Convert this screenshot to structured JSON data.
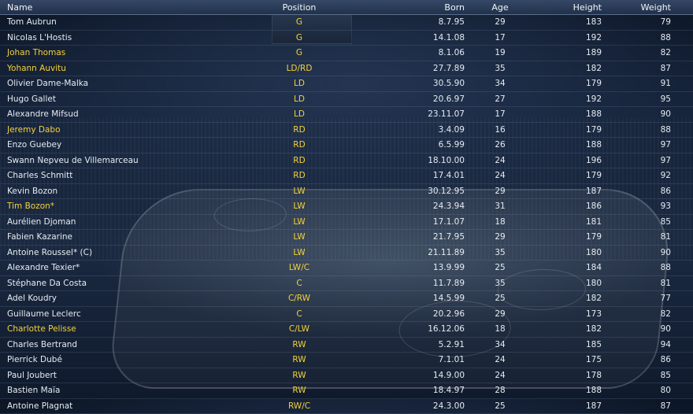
{
  "columns": {
    "name": "Name",
    "position": "Position",
    "born": "Born",
    "age": "Age",
    "height": "Height",
    "weight": "Weight"
  },
  "players": [
    {
      "name": "Tom Aubrun",
      "position": "G",
      "born": "8.7.95",
      "age": "29",
      "height": "183",
      "weight": "79",
      "highlight": false
    },
    {
      "name": "Nicolas L'Hostis",
      "position": "G",
      "born": "14.1.08",
      "age": "17",
      "height": "192",
      "weight": "88",
      "highlight": false
    },
    {
      "name": "Johan Thomas",
      "position": "G",
      "born": "8.1.06",
      "age": "19",
      "height": "189",
      "weight": "82",
      "highlight": true
    },
    {
      "name": "Yohann Auvitu",
      "position": "LD/RD",
      "born": "27.7.89",
      "age": "35",
      "height": "182",
      "weight": "87",
      "highlight": true
    },
    {
      "name": "Olivier Dame-Malka",
      "position": "LD",
      "born": "30.5.90",
      "age": "34",
      "height": "179",
      "weight": "91",
      "highlight": false
    },
    {
      "name": "Hugo Gallet",
      "position": "LD",
      "born": "20.6.97",
      "age": "27",
      "height": "192",
      "weight": "95",
      "highlight": false
    },
    {
      "name": "Alexandre Mifsud",
      "position": "LD",
      "born": "23.11.07",
      "age": "17",
      "height": "188",
      "weight": "90",
      "highlight": false
    },
    {
      "name": "Jeremy Dabo",
      "position": "RD",
      "born": "3.4.09",
      "age": "16",
      "height": "179",
      "weight": "88",
      "highlight": true
    },
    {
      "name": "Enzo Guebey",
      "position": "RD",
      "born": "6.5.99",
      "age": "26",
      "height": "188",
      "weight": "97",
      "highlight": false
    },
    {
      "name": "Swann Nepveu de Villemarceau",
      "position": "RD",
      "born": "18.10.00",
      "age": "24",
      "height": "196",
      "weight": "97",
      "highlight": false
    },
    {
      "name": "Charles Schmitt",
      "position": "RD",
      "born": "17.4.01",
      "age": "24",
      "height": "179",
      "weight": "92",
      "highlight": false
    },
    {
      "name": "Kevin Bozon",
      "position": "LW",
      "born": "30.12.95",
      "age": "29",
      "height": "187",
      "weight": "86",
      "highlight": false
    },
    {
      "name": "Tim Bozon*",
      "position": "LW",
      "born": "24.3.94",
      "age": "31",
      "height": "186",
      "weight": "93",
      "highlight": true
    },
    {
      "name": "Aurélien Djoman",
      "position": "LW",
      "born": "17.1.07",
      "age": "18",
      "height": "181",
      "weight": "85",
      "highlight": false
    },
    {
      "name": "Fabien Kazarine",
      "position": "LW",
      "born": "21.7.95",
      "age": "29",
      "height": "179",
      "weight": "81",
      "highlight": false
    },
    {
      "name": "Antoine Roussel* (C)",
      "position": "LW",
      "born": "21.11.89",
      "age": "35",
      "height": "180",
      "weight": "90",
      "highlight": false
    },
    {
      "name": "Alexandre Texier*",
      "position": "LW/C",
      "born": "13.9.99",
      "age": "25",
      "height": "184",
      "weight": "88",
      "highlight": false
    },
    {
      "name": "Stéphane Da Costa",
      "position": "C",
      "born": "11.7.89",
      "age": "35",
      "height": "180",
      "weight": "81",
      "highlight": false
    },
    {
      "name": "Adel Koudry",
      "position": "C/RW",
      "born": "14.5.99",
      "age": "25",
      "height": "182",
      "weight": "77",
      "highlight": false
    },
    {
      "name": "Guillaume Leclerc",
      "position": "C",
      "born": "20.2.96",
      "age": "29",
      "height": "173",
      "weight": "82",
      "highlight": false
    },
    {
      "name": "Charlotte Pelisse",
      "position": "C/LW",
      "born": "16.12.06",
      "age": "18",
      "height": "182",
      "weight": "90",
      "highlight": true
    },
    {
      "name": "Charles Bertrand",
      "position": "RW",
      "born": "5.2.91",
      "age": "34",
      "height": "185",
      "weight": "94",
      "highlight": false
    },
    {
      "name": "Pierrick Dubé",
      "position": "RW",
      "born": "7.1.01",
      "age": "24",
      "height": "175",
      "weight": "86",
      "highlight": false
    },
    {
      "name": "Paul Joubert",
      "position": "RW",
      "born": "14.9.00",
      "age": "24",
      "height": "178",
      "weight": "85",
      "highlight": false
    },
    {
      "name": "Bastien Maïa",
      "position": "RW",
      "born": "18.4.97",
      "age": "28",
      "height": "188",
      "weight": "80",
      "highlight": false
    },
    {
      "name": "Antoine Plagnat",
      "position": "RW/C",
      "born": "24.3.00",
      "age": "25",
      "height": "187",
      "weight": "87",
      "highlight": false
    }
  ],
  "colors": {
    "accent_yellow": "#f4d23a",
    "text": "#e6ebf2",
    "header_bg": "#2e4466"
  }
}
